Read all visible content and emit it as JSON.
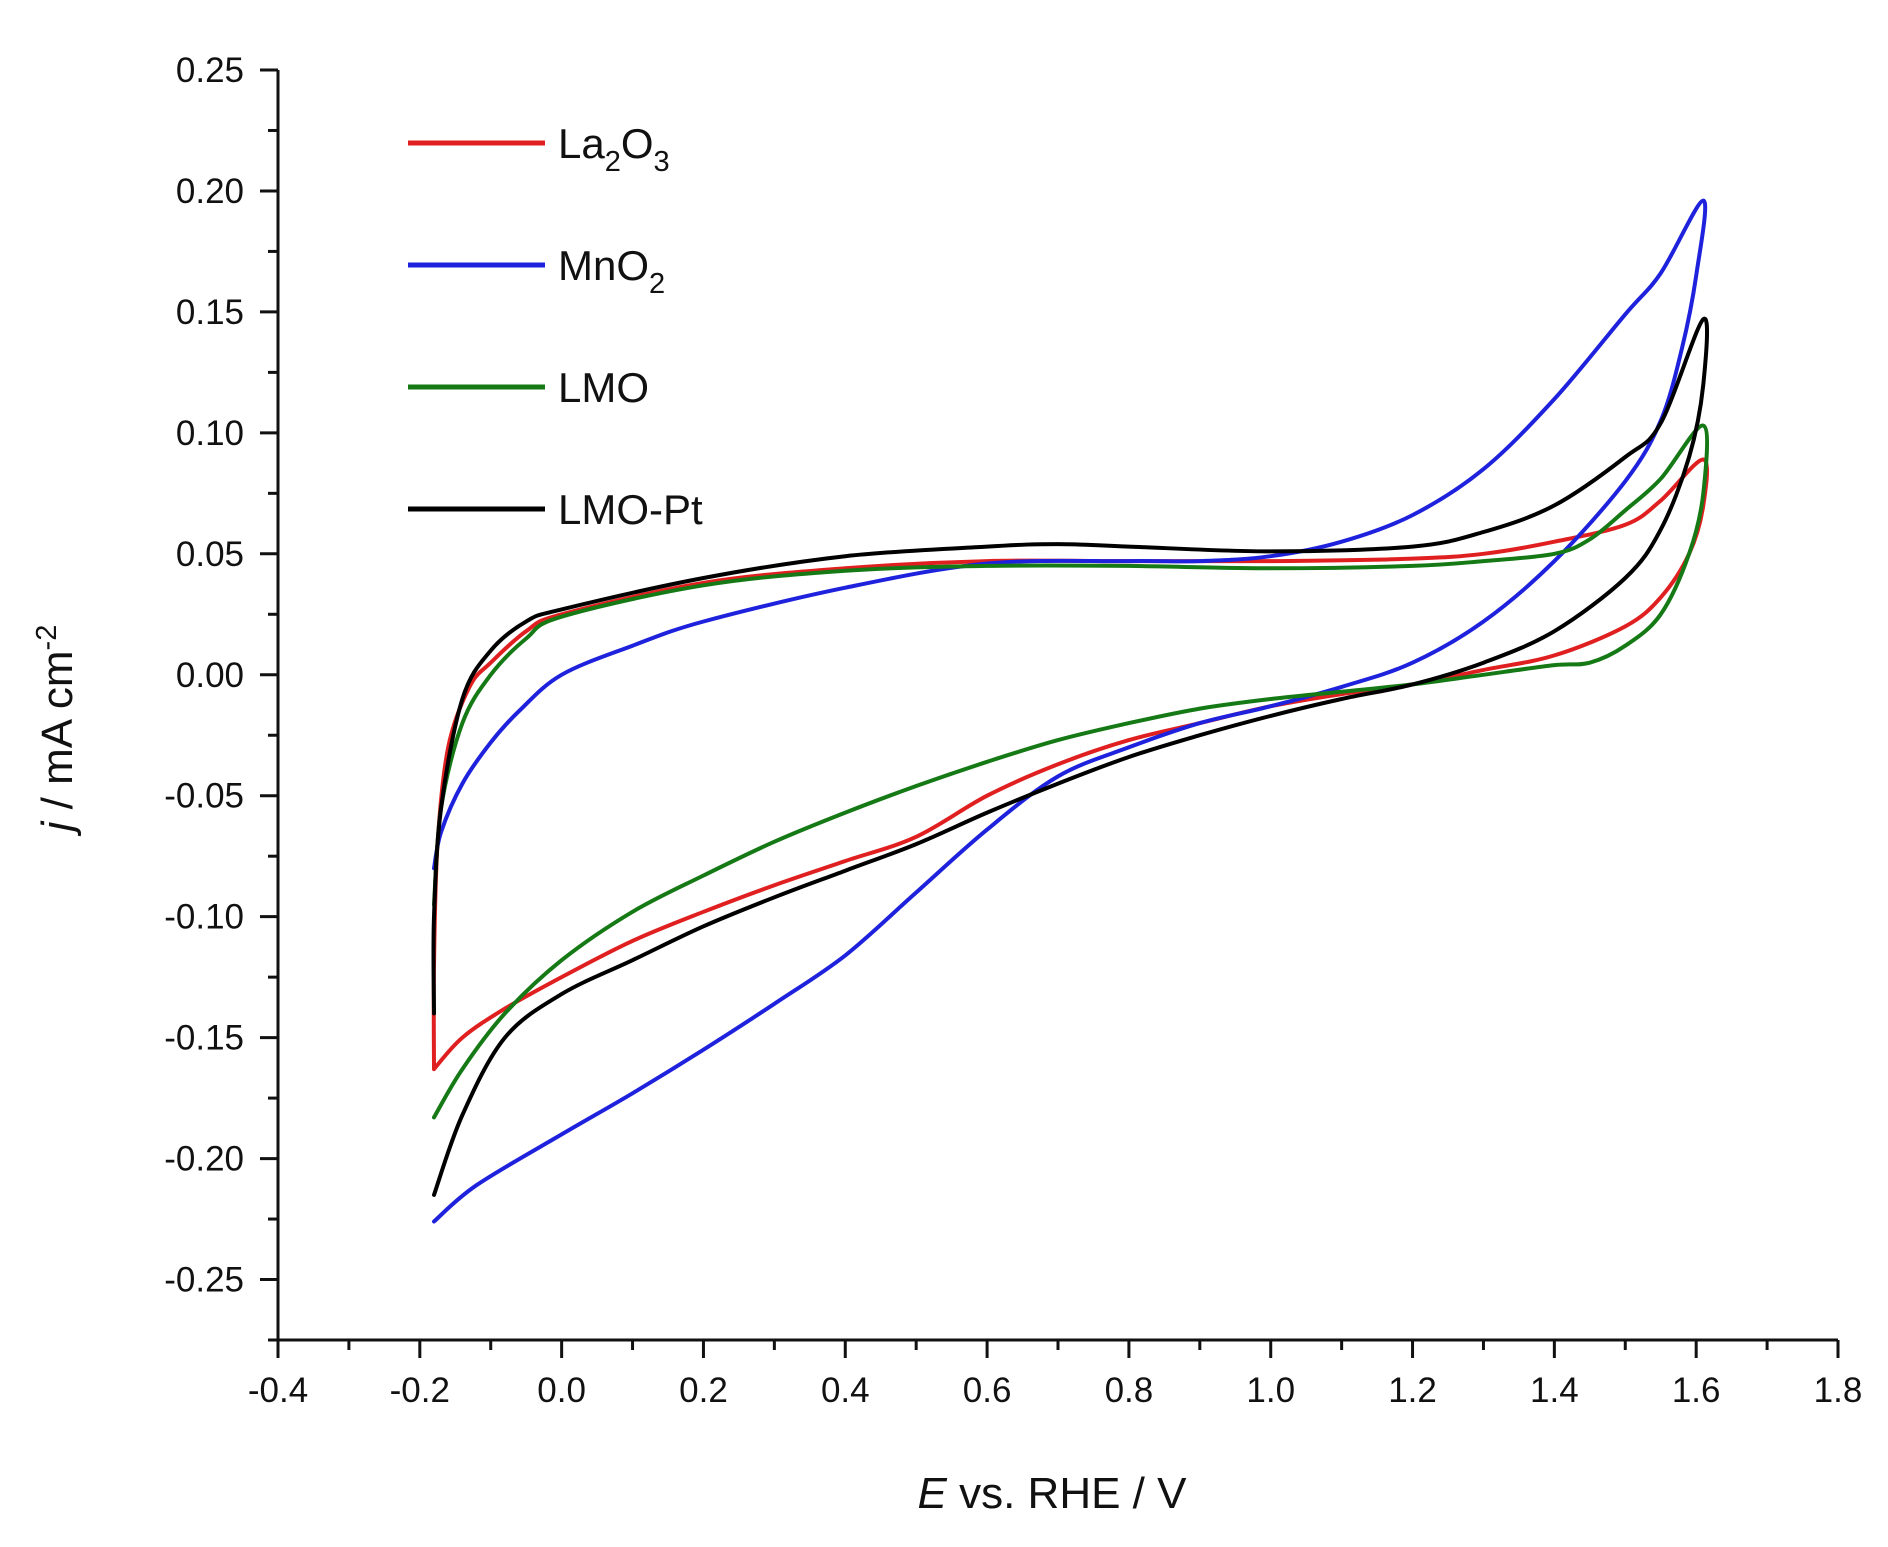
{
  "chart_data": {
    "type": "line",
    "title": "",
    "xlabel": {
      "italic": "E",
      "rest": " vs. RHE / V"
    },
    "ylabel": {
      "italic": "j",
      "rest": " / mA cm",
      "sup": "-2"
    },
    "xlim": [
      -0.4,
      1.8
    ],
    "ylim": [
      -0.275,
      0.25
    ],
    "xticks": [
      -0.4,
      -0.2,
      0.0,
      0.2,
      0.4,
      0.6,
      0.8,
      1.0,
      1.2,
      1.4,
      1.6,
      1.8
    ],
    "xtick_labels": [
      "-0.4",
      "-0.2",
      "0.0",
      "0.2",
      "0.4",
      "0.6",
      "0.8",
      "1.0",
      "1.2",
      "1.4",
      "1.6",
      "1.8"
    ],
    "yticks": [
      -0.25,
      -0.2,
      -0.15,
      -0.1,
      -0.05,
      0.0,
      0.05,
      0.1,
      0.15,
      0.2,
      0.25
    ],
    "ytick_labels": [
      "-0.25",
      "-0.20",
      "-0.15",
      "-0.10",
      "-0.05",
      "0.00",
      "0.05",
      "0.10",
      "0.15",
      "0.20",
      "0.25"
    ],
    "legend_position": "top-left",
    "grid": false,
    "series": [
      {
        "name": "La2O3",
        "label_base": "La",
        "label_sub1": "2",
        "label_mid": "O",
        "label_sub2": "3",
        "color": "#e02020",
        "points": [
          [
            -0.18,
            -0.163
          ],
          [
            -0.14,
            -0.15
          ],
          [
            -0.08,
            -0.138
          ],
          [
            0.0,
            -0.125
          ],
          [
            0.1,
            -0.11
          ],
          [
            0.2,
            -0.098
          ],
          [
            0.3,
            -0.087
          ],
          [
            0.4,
            -0.077
          ],
          [
            0.5,
            -0.067
          ],
          [
            0.6,
            -0.05
          ],
          [
            0.7,
            -0.037
          ],
          [
            0.8,
            -0.027
          ],
          [
            0.9,
            -0.02
          ],
          [
            1.0,
            -0.013
          ],
          [
            1.1,
            -0.008
          ],
          [
            1.2,
            -0.004
          ],
          [
            1.3,
            0.002
          ],
          [
            1.4,
            0.008
          ],
          [
            1.5,
            0.02
          ],
          [
            1.55,
            0.032
          ],
          [
            1.59,
            0.05
          ],
          [
            1.61,
            0.07
          ],
          [
            1.61,
            0.089
          ],
          [
            1.55,
            0.072
          ],
          [
            1.5,
            0.062
          ],
          [
            1.4,
            0.055
          ],
          [
            1.3,
            0.05
          ],
          [
            1.2,
            0.048
          ],
          [
            1.0,
            0.047
          ],
          [
            0.8,
            0.047
          ],
          [
            0.6,
            0.047
          ],
          [
            0.4,
            0.044
          ],
          [
            0.2,
            0.038
          ],
          [
            0.0,
            0.025
          ],
          [
            -0.05,
            0.018
          ],
          [
            -0.1,
            0.005
          ],
          [
            -0.13,
            -0.005
          ],
          [
            -0.16,
            -0.03
          ],
          [
            -0.175,
            -0.07
          ],
          [
            -0.18,
            -0.12
          ],
          [
            -0.18,
            -0.163
          ]
        ]
      },
      {
        "name": "MnO2",
        "label_base": "MnO",
        "label_sub1": "2",
        "label_mid": "",
        "label_sub2": "",
        "color": "#1f22dd",
        "points": [
          [
            -0.18,
            -0.226
          ],
          [
            -0.12,
            -0.211
          ],
          [
            0.0,
            -0.19
          ],
          [
            0.1,
            -0.173
          ],
          [
            0.2,
            -0.155
          ],
          [
            0.3,
            -0.136
          ],
          [
            0.4,
            -0.116
          ],
          [
            0.5,
            -0.09
          ],
          [
            0.6,
            -0.064
          ],
          [
            0.7,
            -0.042
          ],
          [
            0.8,
            -0.03
          ],
          [
            0.9,
            -0.02
          ],
          [
            1.0,
            -0.013
          ],
          [
            1.1,
            -0.005
          ],
          [
            1.2,
            0.005
          ],
          [
            1.3,
            0.022
          ],
          [
            1.4,
            0.047
          ],
          [
            1.5,
            0.08
          ],
          [
            1.55,
            0.105
          ],
          [
            1.58,
            0.135
          ],
          [
            1.6,
            0.165
          ],
          [
            1.61,
            0.196
          ],
          [
            1.55,
            0.166
          ],
          [
            1.5,
            0.149
          ],
          [
            1.4,
            0.114
          ],
          [
            1.3,
            0.085
          ],
          [
            1.2,
            0.066
          ],
          [
            1.1,
            0.055
          ],
          [
            1.0,
            0.049
          ],
          [
            0.9,
            0.047
          ],
          [
            0.8,
            0.047
          ],
          [
            0.6,
            0.046
          ],
          [
            0.4,
            0.036
          ],
          [
            0.2,
            0.022
          ],
          [
            0.1,
            0.012
          ],
          [
            0.0,
            0.0
          ],
          [
            -0.06,
            -0.015
          ],
          [
            -0.1,
            -0.028
          ],
          [
            -0.14,
            -0.045
          ],
          [
            -0.17,
            -0.065
          ],
          [
            -0.18,
            -0.08
          ]
        ]
      },
      {
        "name": "LMO",
        "label_base": "LMO",
        "label_sub1": "",
        "label_mid": "",
        "label_sub2": "",
        "color": "#157a15",
        "points": [
          [
            -0.18,
            -0.183
          ],
          [
            -0.14,
            -0.163
          ],
          [
            -0.08,
            -0.14
          ],
          [
            0.0,
            -0.118
          ],
          [
            0.1,
            -0.098
          ],
          [
            0.2,
            -0.083
          ],
          [
            0.3,
            -0.069
          ],
          [
            0.4,
            -0.057
          ],
          [
            0.5,
            -0.046
          ],
          [
            0.6,
            -0.036
          ],
          [
            0.7,
            -0.027
          ],
          [
            0.8,
            -0.02
          ],
          [
            0.9,
            -0.014
          ],
          [
            1.0,
            -0.01
          ],
          [
            1.1,
            -0.007
          ],
          [
            1.2,
            -0.004
          ],
          [
            1.3,
            0.0
          ],
          [
            1.4,
            0.004
          ],
          [
            1.45,
            0.005
          ],
          [
            1.5,
            0.012
          ],
          [
            1.55,
            0.025
          ],
          [
            1.59,
            0.05
          ],
          [
            1.61,
            0.075
          ],
          [
            1.61,
            0.103
          ],
          [
            1.55,
            0.081
          ],
          [
            1.5,
            0.068
          ],
          [
            1.45,
            0.056
          ],
          [
            1.4,
            0.05
          ],
          [
            1.3,
            0.047
          ],
          [
            1.2,
            0.045
          ],
          [
            1.0,
            0.044
          ],
          [
            0.8,
            0.045
          ],
          [
            0.6,
            0.045
          ],
          [
            0.4,
            0.043
          ],
          [
            0.2,
            0.037
          ],
          [
            0.0,
            0.024
          ],
          [
            -0.05,
            0.015
          ],
          [
            -0.1,
            0.0
          ],
          [
            -0.14,
            -0.02
          ],
          [
            -0.17,
            -0.055
          ],
          [
            -0.18,
            -0.095
          ]
        ]
      },
      {
        "name": "LMO-Pt",
        "label_base": "LMO-Pt",
        "label_sub1": "",
        "label_mid": "",
        "label_sub2": "",
        "color": "#000000",
        "points": [
          [
            -0.18,
            -0.215
          ],
          [
            -0.14,
            -0.182
          ],
          [
            -0.08,
            -0.15
          ],
          [
            0.0,
            -0.132
          ],
          [
            0.1,
            -0.118
          ],
          [
            0.2,
            -0.104
          ],
          [
            0.3,
            -0.092
          ],
          [
            0.4,
            -0.081
          ],
          [
            0.5,
            -0.07
          ],
          [
            0.6,
            -0.057
          ],
          [
            0.7,
            -0.045
          ],
          [
            0.8,
            -0.034
          ],
          [
            0.9,
            -0.025
          ],
          [
            1.0,
            -0.017
          ],
          [
            1.1,
            -0.01
          ],
          [
            1.2,
            -0.004
          ],
          [
            1.3,
            0.005
          ],
          [
            1.4,
            0.018
          ],
          [
            1.5,
            0.04
          ],
          [
            1.55,
            0.06
          ],
          [
            1.59,
            0.09
          ],
          [
            1.61,
            0.12
          ],
          [
            1.61,
            0.147
          ],
          [
            1.55,
            0.104
          ],
          [
            1.5,
            0.09
          ],
          [
            1.4,
            0.07
          ],
          [
            1.3,
            0.059
          ],
          [
            1.2,
            0.053
          ],
          [
            1.0,
            0.051
          ],
          [
            0.8,
            0.053
          ],
          [
            0.7,
            0.054
          ],
          [
            0.6,
            0.053
          ],
          [
            0.4,
            0.049
          ],
          [
            0.2,
            0.04
          ],
          [
            0.0,
            0.027
          ],
          [
            -0.05,
            0.022
          ],
          [
            -0.1,
            0.01
          ],
          [
            -0.14,
            -0.01
          ],
          [
            -0.17,
            -0.055
          ],
          [
            -0.18,
            -0.1
          ],
          [
            -0.18,
            -0.14
          ]
        ]
      }
    ]
  }
}
